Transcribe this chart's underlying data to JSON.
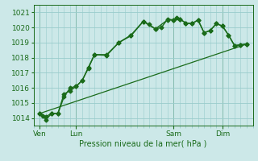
{
  "title": "Pression niveau de la mer( hPa )",
  "background_color": "#cce8e8",
  "grid_color": "#99cccc",
  "line_color": "#1a6b1a",
  "ylim": [
    1013.5,
    1021.5
  ],
  "day_labels": [
    "Ven",
    "Lun",
    "Sam",
    "Dim"
  ],
  "day_positions": [
    2,
    14,
    46,
    62
  ],
  "xlim": [
    0,
    72
  ],
  "line1_x": [
    2,
    3,
    4,
    6,
    8,
    10,
    12,
    14,
    16,
    18,
    20,
    24,
    28,
    32,
    36,
    38,
    40,
    42,
    44,
    46,
    47,
    48,
    50,
    52,
    54,
    56,
    58,
    60,
    62,
    64,
    66,
    68,
    70
  ],
  "line1_y": [
    1014.3,
    1014.15,
    1013.9,
    1014.3,
    1014.3,
    1015.6,
    1015.8,
    1016.1,
    1016.5,
    1017.35,
    1018.2,
    1018.2,
    1019.0,
    1019.5,
    1020.4,
    1020.2,
    1019.9,
    1020.0,
    1020.55,
    1020.5,
    1020.65,
    1020.55,
    1020.3,
    1020.25,
    1020.5,
    1019.65,
    1019.8,
    1020.25,
    1020.1,
    1019.5,
    1018.8,
    1018.85,
    1018.9
  ],
  "line2_x": [
    2,
    4,
    6,
    8,
    10,
    12,
    14,
    16,
    18,
    20,
    24,
    28,
    32,
    36,
    40,
    44,
    46,
    48,
    50,
    52,
    54,
    56,
    58,
    60,
    62,
    64,
    66,
    68,
    70
  ],
  "line2_y": [
    1014.3,
    1014.1,
    1014.3,
    1014.3,
    1015.4,
    1016.0,
    1016.1,
    1016.5,
    1017.3,
    1018.2,
    1018.15,
    1019.0,
    1019.45,
    1020.4,
    1019.9,
    1020.5,
    1020.5,
    1020.55,
    1020.3,
    1020.25,
    1020.5,
    1019.65,
    1019.8,
    1020.25,
    1020.1,
    1019.5,
    1018.8,
    1018.85,
    1018.9
  ],
  "line3_x": [
    2,
    70
  ],
  "line3_y": [
    1014.3,
    1018.9
  ],
  "marker": "D",
  "marker_size": 2.5,
  "line_width": 1.0
}
